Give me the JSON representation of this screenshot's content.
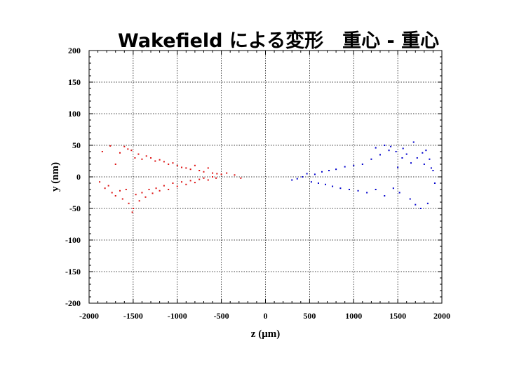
{
  "slide": {
    "title": "Wakefield による変形　重心 - 重心"
  },
  "chart_data": {
    "type": "scatter",
    "title": "Wakefield による変形　重心 - 重心",
    "xlabel": "z (μm)",
    "ylabel": "y (nm)",
    "xlim": [
      -2000,
      2000
    ],
    "ylim": [
      -200,
      200
    ],
    "x_ticks": [
      -2000,
      -1500,
      -1000,
      -500,
      0,
      500,
      1000,
      1500,
      2000
    ],
    "y_ticks": [
      200,
      150,
      100,
      50,
      0,
      -50,
      -100,
      -150,
      -200
    ],
    "x_tick_labels": [
      "-2000",
      "-1500",
      "-1000",
      "-500",
      "0",
      "500",
      "1000",
      "1500",
      "2000"
    ],
    "y_tick_labels": [
      "200",
      "150",
      "100",
      "50",
      "0",
      "-50",
      "-100",
      "-150",
      "-200"
    ],
    "grid": true,
    "series": [
      {
        "color": "#dd1111",
        "points": [
          [
            -1850,
            40
          ],
          [
            -1760,
            49
          ],
          [
            -1700,
            20
          ],
          [
            -1650,
            38
          ],
          [
            -1600,
            48
          ],
          [
            -1560,
            44
          ],
          [
            -1520,
            42
          ],
          [
            -1480,
            30
          ],
          [
            -1440,
            36
          ],
          [
            -1400,
            28
          ],
          [
            -1350,
            33
          ],
          [
            -1300,
            30
          ],
          [
            -1250,
            25
          ],
          [
            -1200,
            27
          ],
          [
            -1150,
            24
          ],
          [
            -1100,
            20
          ],
          [
            -1050,
            22
          ],
          [
            -1000,
            18
          ],
          [
            -950,
            15
          ],
          [
            -900,
            14
          ],
          [
            -850,
            12
          ],
          [
            -800,
            18
          ],
          [
            -750,
            10
          ],
          [
            -700,
            8
          ],
          [
            -650,
            14
          ],
          [
            -600,
            6
          ],
          [
            -550,
            5
          ],
          [
            -500,
            4
          ],
          [
            -440,
            6
          ],
          [
            -350,
            3
          ],
          [
            -280,
            -2
          ],
          [
            -1880,
            -8
          ],
          [
            -1820,
            -18
          ],
          [
            -1780,
            -14
          ],
          [
            -1740,
            -25
          ],
          [
            -1700,
            -30
          ],
          [
            -1650,
            -22
          ],
          [
            -1620,
            -35
          ],
          [
            -1580,
            -20
          ],
          [
            -1550,
            -42
          ],
          [
            -1510,
            -56
          ],
          [
            -1500,
            -50
          ],
          [
            -1470,
            -28
          ],
          [
            -1430,
            -38
          ],
          [
            -1400,
            -25
          ],
          [
            -1360,
            -32
          ],
          [
            -1320,
            -20
          ],
          [
            -1280,
            -26
          ],
          [
            -1240,
            -18
          ],
          [
            -1200,
            -22
          ],
          [
            -1150,
            -14
          ],
          [
            -1100,
            -20
          ],
          [
            -1050,
            -10
          ],
          [
            -1000,
            -15
          ],
          [
            -950,
            -8
          ],
          [
            -900,
            -12
          ],
          [
            -850,
            -6
          ],
          [
            -800,
            -9
          ],
          [
            -750,
            -4
          ],
          [
            -700,
            -2
          ],
          [
            -650,
            -5
          ],
          [
            -600,
            0
          ],
          [
            -560,
            -2
          ]
        ]
      },
      {
        "color": "#0000cc",
        "points": [
          [
            300,
            -5
          ],
          [
            360,
            -3
          ],
          [
            420,
            0
          ],
          [
            470,
            5
          ],
          [
            520,
            -8
          ],
          [
            560,
            4
          ],
          [
            600,
            -10
          ],
          [
            640,
            8
          ],
          [
            680,
            -12
          ],
          [
            720,
            10
          ],
          [
            760,
            -15
          ],
          [
            800,
            12
          ],
          [
            850,
            -18
          ],
          [
            900,
            16
          ],
          [
            950,
            -20
          ],
          [
            1000,
            18
          ],
          [
            1050,
            -22
          ],
          [
            1100,
            20
          ],
          [
            1150,
            -25
          ],
          [
            1200,
            28
          ],
          [
            1250,
            -20
          ],
          [
            1300,
            35
          ],
          [
            1350,
            -30
          ],
          [
            1400,
            42
          ],
          [
            1420,
            48
          ],
          [
            1450,
            -18
          ],
          [
            1480,
            40
          ],
          [
            1520,
            -25
          ],
          [
            1560,
            45
          ],
          [
            1600,
            36
          ],
          [
            1640,
            -35
          ],
          [
            1680,
            55
          ],
          [
            1720,
            30
          ],
          [
            1760,
            -50
          ],
          [
            1780,
            38
          ],
          [
            1800,
            20
          ],
          [
            1820,
            42
          ],
          [
            1840,
            -42
          ],
          [
            1860,
            28
          ],
          [
            1880,
            14
          ],
          [
            1900,
            10
          ],
          [
            1920,
            -10
          ],
          [
            1700,
            -44
          ],
          [
            1650,
            22
          ],
          [
            1550,
            30
          ],
          [
            1500,
            15
          ],
          [
            1350,
            50
          ],
          [
            1250,
            46
          ]
        ]
      }
    ]
  }
}
